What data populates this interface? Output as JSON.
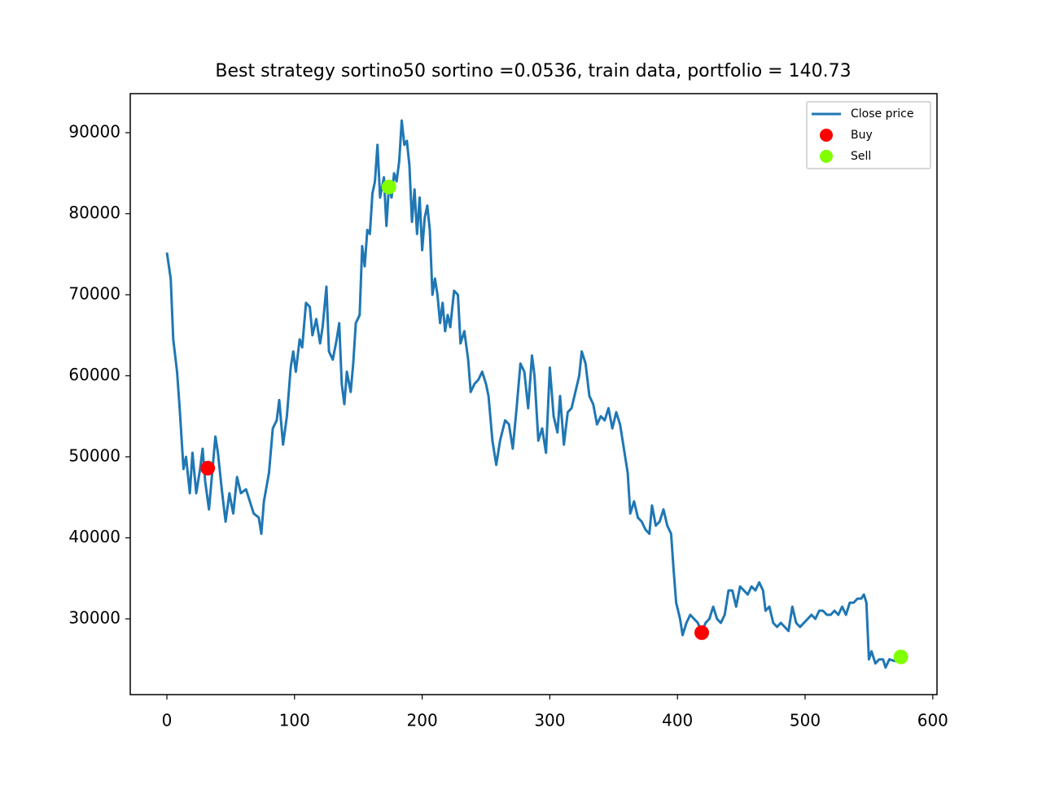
{
  "chart_data": {
    "type": "line",
    "title": "Best strategy sortino50 sortino =0.0536, train data, portfolio = 140.73",
    "xlim": [
      -28.7,
      603.3
    ],
    "ylim": [
      20650,
      94820
    ],
    "xticks": [
      0,
      100,
      200,
      300,
      400,
      500,
      600
    ],
    "yticks": [
      30000,
      40000,
      50000,
      60000,
      70000,
      80000,
      90000
    ],
    "legend": "upper right",
    "series": [
      {
        "name": "Close price",
        "type": "line",
        "color": "#1f77b4",
        "x": [
          0,
          3,
          5,
          8,
          10,
          13,
          15,
          18,
          20,
          23,
          26,
          28,
          30,
          33,
          36,
          38,
          40,
          43,
          46,
          49,
          52,
          55,
          58,
          62,
          65,
          68,
          72,
          74,
          76,
          80,
          83,
          86,
          88,
          91,
          94,
          97,
          99,
          101,
          104,
          106,
          109,
          112,
          114,
          117,
          120,
          122,
          125,
          127,
          130,
          133,
          135,
          137,
          139,
          141,
          144,
          146,
          148,
          151,
          153,
          155,
          157,
          159,
          161,
          163,
          165,
          167,
          170,
          172,
          174,
          176,
          178,
          180,
          182,
          184,
          186,
          188,
          190,
          192,
          194,
          196,
          198,
          200,
          202,
          204,
          206,
          208,
          210,
          212,
          214,
          216,
          218,
          220,
          222,
          225,
          228,
          230,
          233,
          236,
          238,
          241,
          244,
          247,
          250,
          252,
          255,
          258,
          261,
          265,
          268,
          271,
          274,
          277,
          280,
          283,
          286,
          288,
          291,
          294,
          297,
          300,
          303,
          306,
          308,
          311,
          314,
          317,
          320,
          323,
          325,
          328,
          331,
          334,
          337,
          340,
          343,
          346,
          349,
          352,
          355,
          358,
          361,
          363,
          366,
          369,
          372,
          375,
          378,
          380,
          383,
          386,
          389,
          392,
          395,
          397,
          399,
          402,
          404,
          407,
          410,
          413,
          416,
          419,
          422,
          425,
          428,
          431,
          434,
          437,
          440,
          443,
          446,
          449,
          452,
          455,
          458,
          461,
          464,
          467,
          469,
          472,
          475,
          478,
          481,
          484,
          487,
          490,
          493,
          496,
          499,
          502,
          505,
          508,
          511,
          514,
          517,
          520,
          523,
          526,
          529,
          532,
          535,
          538,
          541,
          544,
          546,
          548,
          550,
          552,
          555,
          558,
          561,
          563,
          566,
          570,
          573
        ],
        "values": [
          75200,
          72000,
          64500,
          60500,
          56000,
          48500,
          50000,
          45500,
          50500,
          45500,
          48500,
          51000,
          47000,
          43500,
          49000,
          52500,
          50500,
          46000,
          42000,
          45500,
          43000,
          47500,
          45500,
          46000,
          44500,
          43000,
          42500,
          40500,
          44500,
          48000,
          53500,
          54500,
          57000,
          51500,
          55000,
          61000,
          63000,
          60500,
          64500,
          63500,
          69000,
          68500,
          65000,
          67000,
          64000,
          66000,
          71000,
          63000,
          62000,
          64500,
          66500,
          59000,
          56500,
          60500,
          58000,
          61500,
          66500,
          67500,
          76000,
          73500,
          78000,
          77500,
          82500,
          84000,
          88500,
          82000,
          84500,
          78500,
          83500,
          82000,
          85000,
          84000,
          86500,
          91500,
          88500,
          89000,
          86000,
          79000,
          83000,
          77500,
          82000,
          75500,
          79500,
          81000,
          78000,
          70000,
          72000,
          70000,
          66500,
          69000,
          65500,
          67500,
          66000,
          70500,
          70000,
          64000,
          65500,
          62000,
          58000,
          59000,
          59500,
          60500,
          59000,
          57500,
          52000,
          49000,
          52000,
          54500,
          54000,
          51000,
          56000,
          61500,
          60500,
          56000,
          62500,
          60000,
          52000,
          53500,
          50500,
          61000,
          55000,
          53000,
          57500,
          51500,
          55500,
          56000,
          58000,
          60000,
          63000,
          61500,
          57500,
          56500,
          54000,
          55000,
          54500,
          56000,
          53500,
          55500,
          54000,
          51000,
          48000,
          43000,
          44500,
          42500,
          42000,
          41000,
          40500,
          44000,
          41500,
          42000,
          43500,
          41500,
          40500,
          36000,
          32000,
          30000,
          28000,
          29500,
          30500,
          30000,
          29500,
          28300,
          29500,
          30000,
          31500,
          30000,
          29500,
          30500,
          33500,
          33500,
          31500,
          34000,
          33500,
          33000,
          34000,
          33500,
          34500,
          33500,
          31000,
          31500,
          29500,
          29000,
          29500,
          29000,
          28500,
          31500,
          29500,
          29000,
          29500,
          30000,
          30500,
          30000,
          31000,
          31000,
          30500,
          30500,
          31000,
          30500,
          31500,
          30500,
          32000,
          32000,
          32500,
          32500,
          33000,
          32000,
          25000,
          26000,
          24500,
          25000,
          25000,
          24000,
          25000,
          24800,
          24800
        ]
      },
      {
        "name": "Buy",
        "type": "scatter",
        "color": "#ff0000",
        "x": [
          32,
          419
        ],
        "values": [
          48600,
          28300
        ]
      },
      {
        "name": "Sell",
        "type": "scatter",
        "color": "#7fff00",
        "x": [
          174,
          575
        ],
        "values": [
          83300,
          25300
        ]
      }
    ]
  }
}
